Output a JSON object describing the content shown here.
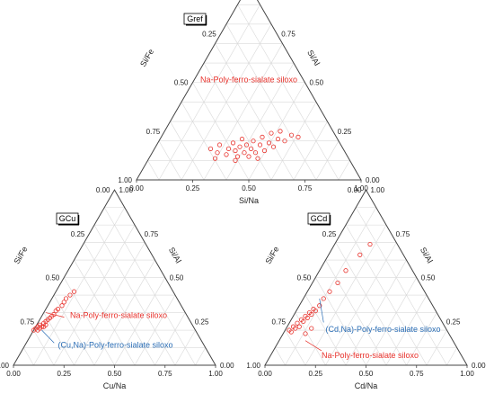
{
  "colors": {
    "frame": "#444444",
    "grid": "#d9d9d9",
    "points": "#e8322c",
    "label_red": "#e8322c",
    "label_blue": "#2a6db5"
  },
  "chart_data": [
    {
      "type": "scatter",
      "subtype": "ternary",
      "panel_label": "Gref",
      "bottom_axis_label": "Si/Na",
      "left_axis_label": "Si/Fe",
      "right_axis_label": "Si/Al",
      "bottom_ticks": [
        "0.00",
        "0.25",
        "0.50",
        "0.75",
        "1.00"
      ],
      "left_ticks": [
        "1.00",
        "0.75",
        "0.50",
        "0.25",
        "0.00"
      ],
      "right_ticks": [
        "1.00",
        "0.75",
        "0.50",
        "0.25",
        "0.00"
      ],
      "grid": true,
      "annotations": [
        {
          "text": "Na-Poly-ferro-sialate siloxo",
          "color": "red"
        }
      ],
      "points": [
        {
          "a": 0.33,
          "b": 0.16
        },
        {
          "a": 0.36,
          "b": 0.14
        },
        {
          "a": 0.37,
          "b": 0.18
        },
        {
          "a": 0.4,
          "b": 0.13
        },
        {
          "a": 0.41,
          "b": 0.16
        },
        {
          "a": 0.43,
          "b": 0.19
        },
        {
          "a": 0.44,
          "b": 0.15
        },
        {
          "a": 0.45,
          "b": 0.12
        },
        {
          "a": 0.46,
          "b": 0.17
        },
        {
          "a": 0.47,
          "b": 0.21
        },
        {
          "a": 0.48,
          "b": 0.14
        },
        {
          "a": 0.49,
          "b": 0.18
        },
        {
          "a": 0.5,
          "b": 0.12
        },
        {
          "a": 0.51,
          "b": 0.16
        },
        {
          "a": 0.52,
          "b": 0.2
        },
        {
          "a": 0.53,
          "b": 0.14
        },
        {
          "a": 0.55,
          "b": 0.18
        },
        {
          "a": 0.56,
          "b": 0.22
        },
        {
          "a": 0.57,
          "b": 0.15
        },
        {
          "a": 0.59,
          "b": 0.19
        },
        {
          "a": 0.6,
          "b": 0.24
        },
        {
          "a": 0.61,
          "b": 0.17
        },
        {
          "a": 0.63,
          "b": 0.21
        },
        {
          "a": 0.64,
          "b": 0.25
        },
        {
          "a": 0.66,
          "b": 0.2
        },
        {
          "a": 0.69,
          "b": 0.23
        },
        {
          "a": 0.72,
          "b": 0.22
        },
        {
          "a": 0.35,
          "b": 0.11
        },
        {
          "a": 0.44,
          "b": 0.1
        },
        {
          "a": 0.54,
          "b": 0.11
        }
      ]
    },
    {
      "type": "scatter",
      "subtype": "ternary",
      "panel_label": "GCu",
      "bottom_axis_label": "Cu/Na",
      "left_axis_label": "Si/Fe",
      "right_axis_label": "Si/Al",
      "bottom_ticks": [
        "0.00",
        "0.25",
        "0.50",
        "0.75",
        "1.00"
      ],
      "left_ticks": [
        "1.00",
        "0.75",
        "0.50",
        "0.25",
        "0.00"
      ],
      "right_ticks": [
        "1.00",
        "0.75",
        "0.50",
        "0.25",
        "0.00"
      ],
      "grid": true,
      "annotations": [
        {
          "text": "Na-Poly-ferro-sialate siloxo",
          "color": "red"
        },
        {
          "text": "(Cu,Na)-Poly-ferro-sialate siloxo",
          "color": "blue"
        }
      ],
      "points": [
        {
          "a": 0.1,
          "b": 0.2
        },
        {
          "a": 0.11,
          "b": 0.21
        },
        {
          "a": 0.12,
          "b": 0.2
        },
        {
          "a": 0.12,
          "b": 0.22
        },
        {
          "a": 0.13,
          "b": 0.21
        },
        {
          "a": 0.13,
          "b": 0.23
        },
        {
          "a": 0.14,
          "b": 0.22
        },
        {
          "a": 0.15,
          "b": 0.24
        },
        {
          "a": 0.15,
          "b": 0.22
        },
        {
          "a": 0.16,
          "b": 0.25
        },
        {
          "a": 0.16,
          "b": 0.23
        },
        {
          "a": 0.17,
          "b": 0.26
        },
        {
          "a": 0.18,
          "b": 0.27
        },
        {
          "a": 0.19,
          "b": 0.28
        },
        {
          "a": 0.2,
          "b": 0.29
        },
        {
          "a": 0.21,
          "b": 0.31
        },
        {
          "a": 0.22,
          "b": 0.32
        },
        {
          "a": 0.24,
          "b": 0.34
        },
        {
          "a": 0.25,
          "b": 0.36
        },
        {
          "a": 0.26,
          "b": 0.38
        },
        {
          "a": 0.28,
          "b": 0.4
        },
        {
          "a": 0.3,
          "b": 0.42
        }
      ]
    },
    {
      "type": "scatter",
      "subtype": "ternary",
      "panel_label": "GCd",
      "bottom_axis_label": "Cd/Na",
      "left_axis_label": "Si/Fe",
      "right_axis_label": "Si/Al",
      "bottom_ticks": [
        "0.00",
        "0.25",
        "0.50",
        "0.75",
        "1.00"
      ],
      "left_ticks": [
        "1.00",
        "0.75",
        "0.50",
        "0.25",
        "0.00"
      ],
      "right_ticks": [
        "1.00",
        "0.75",
        "0.50",
        "0.25",
        "0.00"
      ],
      "grid": true,
      "annotations": [
        {
          "text": "(Cd,Na)-Poly-ferro-sialate siloxo",
          "color": "blue"
        },
        {
          "text": "Na-Poly-ferro-sialate siloxo",
          "color": "red"
        }
      ],
      "points": [
        {
          "a": 0.12,
          "b": 0.2
        },
        {
          "a": 0.13,
          "b": 0.19
        },
        {
          "a": 0.14,
          "b": 0.22
        },
        {
          "a": 0.15,
          "b": 0.21
        },
        {
          "a": 0.16,
          "b": 0.24
        },
        {
          "a": 0.17,
          "b": 0.22
        },
        {
          "a": 0.18,
          "b": 0.26
        },
        {
          "a": 0.19,
          "b": 0.25
        },
        {
          "a": 0.2,
          "b": 0.28
        },
        {
          "a": 0.21,
          "b": 0.27
        },
        {
          "a": 0.22,
          "b": 0.3
        },
        {
          "a": 0.23,
          "b": 0.29
        },
        {
          "a": 0.24,
          "b": 0.32
        },
        {
          "a": 0.25,
          "b": 0.31
        },
        {
          "a": 0.27,
          "b": 0.34
        },
        {
          "a": 0.29,
          "b": 0.38
        },
        {
          "a": 0.32,
          "b": 0.42
        },
        {
          "a": 0.36,
          "b": 0.47
        },
        {
          "a": 0.4,
          "b": 0.54
        },
        {
          "a": 0.47,
          "b": 0.63
        },
        {
          "a": 0.52,
          "b": 0.69
        },
        {
          "a": 0.2,
          "b": 0.18
        },
        {
          "a": 0.23,
          "b": 0.21
        }
      ]
    }
  ]
}
